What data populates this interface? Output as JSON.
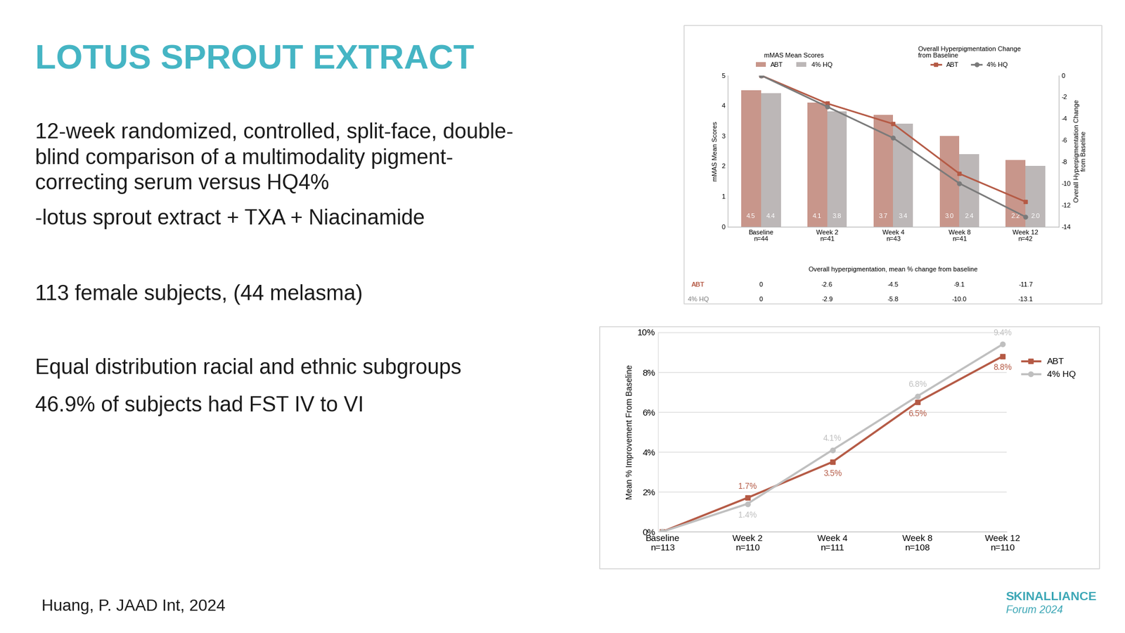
{
  "slide": {
    "title": "LOTUS SPROUT EXTRACT",
    "paragraphs": [
      [
        "12-week randomized, controlled, split-face, double-",
        "blind comparison of a multimodality pigment-",
        "correcting serum versus HQ4%"
      ],
      [
        "-lotus sprout extract + TXA + Niacinamide"
      ],
      [
        "113 female subjects, (44 melasma)"
      ],
      [
        "Equal distribution racial and ethnic subgroups",
        "46.9% of subjects had FST IV to VI"
      ]
    ],
    "citation": "Huang, P. JAAD Int, 2024",
    "logo": [
      "SKINALLIANCE",
      "Forum 2024"
    ]
  },
  "chart_data": [
    {
      "type": "combo",
      "categories": [
        "Baseline\nn=44",
        "Week 2\nn=41",
        "Week 4\nn=43",
        "Week 8\nn=41",
        "Week 12\nn=42"
      ],
      "y_label": "mMAS Mean Scores",
      "y2_label": "Overall Hyperpigmentation Change\nfrom Baseline",
      "bar_legend_title": "mMAS Mean Scores",
      "line_legend_title": "Overall Hyperpigmentation Change\nfrom Baseline",
      "table_title": "Overall hyperpigmentation, mean % change from baseline",
      "ylim": [
        0,
        5
      ],
      "yticks": [
        0,
        1,
        2,
        3,
        4,
        5
      ],
      "y2lim": [
        -14,
        0
      ],
      "y2ticks": [
        0,
        -2,
        -4,
        -6,
        -8,
        -10,
        -12,
        -14
      ],
      "legend": "top",
      "series": [
        {
          "name": "ABT",
          "type": "bar",
          "color": "#c8968b",
          "data_labels": true,
          "values": [
            4.5,
            4.1,
            3.7,
            3.0,
            2.2
          ]
        },
        {
          "name": "4% HQ",
          "type": "bar",
          "color": "#bcb7b7",
          "data_labels": true,
          "values": [
            4.4,
            3.8,
            3.4,
            2.4,
            2.0
          ]
        },
        {
          "name": "ABT",
          "type": "line",
          "axis": "y2",
          "color": "#b55a45",
          "marker": "square",
          "values": [
            0,
            -2.6,
            -4.5,
            -9.1,
            -11.7
          ]
        },
        {
          "name": "4% HQ",
          "type": "line",
          "axis": "y2",
          "color": "#7a7a7a",
          "marker": "circle",
          "values": [
            0,
            -2.9,
            -5.8,
            -10.0,
            -13.1
          ]
        }
      ]
    },
    {
      "type": "line",
      "categories": [
        "Baseline\nn=113",
        "Week 2\nn=110",
        "Week 4\nn=111",
        "Week 8\nn=108",
        "Week 12\nn=110"
      ],
      "y_label": "Mean % Improvement From Baseline",
      "ylim": [
        0,
        10
      ],
      "yticks": [
        {
          "value": 0,
          "label": "0%"
        },
        {
          "value": 2,
          "label": "2%"
        },
        {
          "value": 4,
          "label": "4%"
        },
        {
          "value": 6,
          "label": "6%"
        },
        {
          "value": 8,
          "label": "8%"
        },
        {
          "value": 10,
          "label": "10%"
        }
      ],
      "grid": true,
      "legend": "right",
      "data_labels": true,
      "series": [
        {
          "name": "ABT",
          "color": "#b55a45",
          "marker": "square",
          "values": [
            0,
            1.7,
            3.5,
            6.5,
            8.8
          ],
          "value_labels": [
            null,
            "1.7%",
            "3.5%",
            "6.5%",
            "8.8%"
          ]
        },
        {
          "name": "4% HQ",
          "color": "#bfbfbf",
          "marker": "circle",
          "values": [
            0,
            1.4,
            4.1,
            6.8,
            9.4
          ],
          "value_labels": [
            null,
            "1.4%",
            "4.1%",
            "6.8%",
            "9.4%"
          ]
        }
      ]
    }
  ]
}
